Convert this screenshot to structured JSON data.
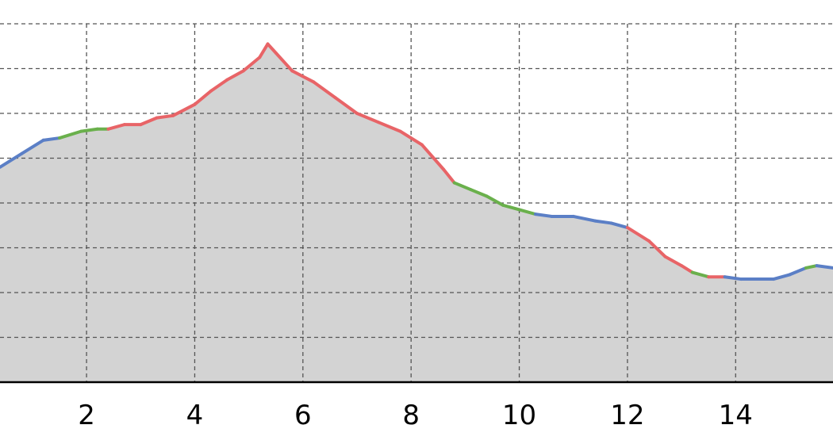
{
  "chart_data": {
    "type": "area",
    "title": "",
    "xlabel": "",
    "ylabel": "",
    "xlim": [
      0.4,
      15.8
    ],
    "ylim": [
      0,
      8
    ],
    "xticks": [
      2,
      4,
      6,
      8,
      10,
      12,
      14
    ],
    "xtick_labels": [
      "2",
      "4",
      "6",
      "8",
      "10",
      "12",
      "14"
    ],
    "yticks": [
      1,
      2,
      3,
      4,
      5,
      6,
      7,
      8
    ],
    "grid": true,
    "fill_color": "#d3d3d3",
    "colors": {
      "blue": "#5b7fc6",
      "green": "#6ab04c",
      "red": "#e86467"
    },
    "x": [
      0.4,
      0.8,
      1.2,
      1.5,
      1.9,
      2.2,
      2.4,
      2.7,
      3.0,
      3.3,
      3.6,
      4.0,
      4.3,
      4.6,
      4.9,
      5.2,
      5.35,
      5.5,
      5.8,
      6.2,
      6.6,
      7.0,
      7.4,
      7.8,
      8.2,
      8.6,
      8.8,
      9.1,
      9.4,
      9.7,
      10.0,
      10.3,
      10.6,
      11.0,
      11.4,
      11.7,
      12.0,
      12.4,
      12.7,
      13.0,
      13.2,
      13.5,
      13.8,
      14.1,
      14.4,
      14.7,
      15.0,
      15.3,
      15.5,
      15.8
    ],
    "y": [
      4.8,
      5.1,
      5.4,
      5.45,
      5.6,
      5.65,
      5.65,
      5.75,
      5.75,
      5.9,
      5.95,
      6.2,
      6.5,
      6.75,
      6.95,
      7.25,
      7.55,
      7.35,
      6.95,
      6.7,
      6.35,
      6.0,
      5.8,
      5.6,
      5.3,
      4.75,
      4.45,
      4.3,
      4.15,
      3.95,
      3.85,
      3.75,
      3.7,
      3.7,
      3.6,
      3.55,
      3.45,
      3.15,
      2.8,
      2.6,
      2.45,
      2.35,
      2.35,
      2.3,
      2.3,
      2.3,
      2.4,
      2.55,
      2.6,
      2.55
    ],
    "segment_colors": [
      "blue",
      "blue",
      "blue",
      "green",
      "green",
      "green",
      "red",
      "red",
      "red",
      "red",
      "red",
      "red",
      "red",
      "red",
      "red",
      "red",
      "red",
      "red",
      "red",
      "red",
      "red",
      "red",
      "red",
      "red",
      "red",
      "red",
      "green",
      "green",
      "green",
      "green",
      "green",
      "blue",
      "blue",
      "blue",
      "blue",
      "blue",
      "red",
      "red",
      "red",
      "red",
      "green",
      "red",
      "blue",
      "blue",
      "blue",
      "blue",
      "blue",
      "green",
      "blue"
    ]
  }
}
